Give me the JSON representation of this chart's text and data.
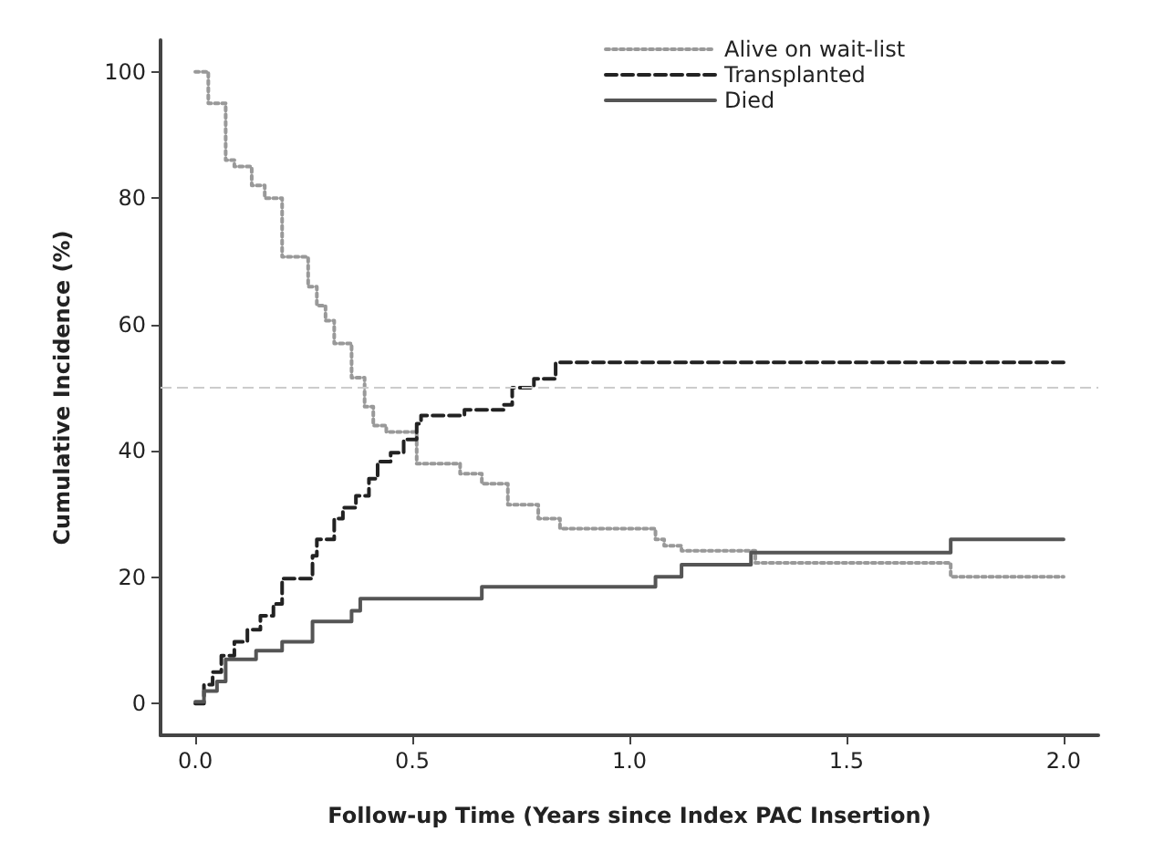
{
  "chart_data": {
    "type": "step",
    "xlabel": "Follow-up Time (Years since Index PAC Insertion)",
    "ylabel": "Cumulative Incidence (%)",
    "xlim": [
      -0.08,
      2.08
    ],
    "xticks": [
      {
        "value": 0,
        "label": "0.0"
      },
      {
        "value": 0.5,
        "label": "0.5"
      },
      {
        "value": 1,
        "label": "1.0"
      },
      {
        "value": 1.5,
        "label": "1.5"
      },
      {
        "value": 2,
        "label": "2.0"
      }
    ],
    "ylim": [
      -5,
      105
    ],
    "yticks": [
      0,
      20,
      40,
      60,
      80,
      100
    ],
    "grid": false,
    "legend": "top right",
    "marker": "none",
    "ref_lines": [
      {
        "axis": "y",
        "value": 50,
        "label": null,
        "color": "#cccccc",
        "line_style": "dashed"
      }
    ],
    "series": [
      {
        "name": "Alive on wait-list",
        "color": "#999999",
        "line_style": "dotted",
        "x": [
          0,
          0.03,
          0.07,
          0.09,
          0.13,
          0.16,
          0.2,
          0.26,
          0.28,
          0.3,
          0.32,
          0.36,
          0.39,
          0.41,
          0.44,
          0.51,
          0.61,
          0.66,
          0.72,
          0.79,
          0.84,
          1.06,
          1.08,
          1.12,
          1.29,
          1.74,
          2.0
        ],
        "values": [
          100,
          95,
          86,
          85,
          82,
          80,
          70.7,
          66,
          63,
          60.6,
          57,
          51.6,
          47,
          44,
          43,
          38,
          36.4,
          34.8,
          31.5,
          29.3,
          27.7,
          26,
          25,
          24.2,
          22.3,
          20.1,
          20.1
        ]
      },
      {
        "name": "Transplanted",
        "color": "#222222",
        "line_style": "dashed",
        "x": [
          0,
          0.02,
          0.04,
          0.06,
          0.09,
          0.12,
          0.15,
          0.18,
          0.2,
          0.27,
          0.28,
          0.32,
          0.34,
          0.37,
          0.4,
          0.42,
          0.45,
          0.48,
          0.51,
          0.52,
          0.62,
          0.71,
          0.73,
          0.78,
          0.83,
          2.0
        ],
        "values": [
          0,
          3,
          5,
          7.6,
          9.8,
          11.7,
          13.9,
          15.8,
          19.8,
          23.4,
          26,
          29.3,
          31,
          32.9,
          35.6,
          38.3,
          39.7,
          41.8,
          44.3,
          45.6,
          46.5,
          47.3,
          50,
          51.4,
          54,
          54
        ]
      },
      {
        "name": "Died",
        "color": "#555555",
        "line_style": "solid",
        "x": [
          0,
          0.02,
          0.05,
          0.07,
          0.14,
          0.2,
          0.27,
          0.36,
          0.38,
          0.66,
          1.06,
          1.12,
          1.28,
          1.74,
          2.0
        ],
        "values": [
          0.3,
          2,
          3.5,
          7,
          8.4,
          9.8,
          13,
          14.7,
          16.6,
          18.5,
          20.1,
          22,
          23.9,
          26,
          26
        ]
      }
    ]
  }
}
